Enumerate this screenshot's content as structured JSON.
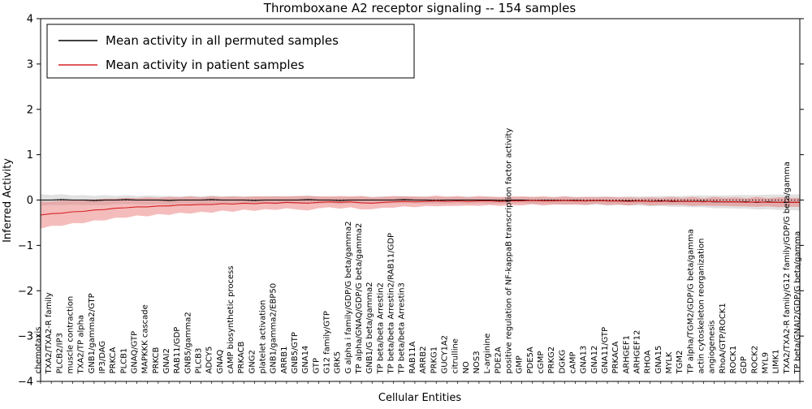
{
  "chart_data": {
    "type": "line",
    "title": "Thromboxane A2 receptor signaling -- 154 samples",
    "xlabel": "Cellular Entities",
    "ylabel": "Inferred Activity",
    "ylim": [
      -4,
      4
    ],
    "yticks": [
      -4,
      -3,
      -2,
      -1,
      0,
      1,
      2,
      3,
      4
    ],
    "grid": false,
    "legend_position": "upper-left",
    "zero_line": {
      "style": "dotted",
      "color": "#000000",
      "y": 0
    },
    "categories": [
      "chemotaxis",
      "TXA2/TXA2-R family",
      "PLCB2/IP3",
      "muscle contraction",
      "TXA2/TP alpha",
      "GNB1/gamma2/GTP",
      "IP3/DAG",
      "PRKCA",
      "PLCB1",
      "GNAQ/GTP",
      "MAPKKK cascade",
      "PRKCB",
      "GNAI2",
      "RAB11/GDP",
      "GNB5/gamma2",
      "PLCB3",
      "ADCY5",
      "GNAQ",
      "cAMP biosynthetic process",
      "PRKACB",
      "GNG2",
      "platelet activation",
      "GNB1/gamma2/EBP50",
      "ARRB1",
      "GNB5/GTP",
      "GNA14",
      "GTP",
      "G12 family/GTP",
      "GRK5",
      "G alpha i family/GDP/G beta/gamma2",
      "TP alpha/GNAQ/GDP/G beta/gamma2",
      "GNB1/G beta/gamma2",
      "TP beta/beta Arrestin2",
      "TP beta/beta Arrestin2/RAB11/GDP",
      "TP beta/beta Arrestin3",
      "RAB11A",
      "ARRB2",
      "PRKG1",
      "GUCY1A2",
      "citrulline",
      "NO",
      "NOS3",
      "L-arginine",
      "PDE2A",
      "positive regulation of NF-kappaB transcription factor activity",
      "GMP",
      "PDE5A",
      "cGMP",
      "PRKG2",
      "DGKG",
      "cAMP",
      "GNA13",
      "GNA12",
      "GNA11/GTP",
      "PRKACA",
      "ARHGEF1",
      "ARHGEF12",
      "RHOA",
      "GNA15",
      "MYLK",
      "TGM2",
      "TP alpha/TGM2/GDP/G beta/gamma",
      "actin cytoskeleton reorganization",
      "angiogenesis",
      "RhoA/GTP/ROCK1",
      "ROCK1",
      "GDP",
      "ROCK2",
      "MYL9",
      "LIMK1",
      "TXA2/TXA2-R family/G12 family/GDP/G beta/gamma",
      "TP beta/GNAI2/GDP/G beta/gamma"
    ],
    "series": [
      {
        "name": "Mean activity in all permuted samples",
        "color": "#000000",
        "band_color": "#bdbdbd",
        "band_opacity": 0.45,
        "values": [
          0.0,
          0.0,
          0.01,
          0.0,
          0.0,
          -0.01,
          0.0,
          0.0,
          0.01,
          0.0,
          0.0,
          0.0,
          -0.01,
          0.0,
          0.0,
          0.0,
          0.01,
          0.0,
          0.0,
          0.0,
          -0.01,
          0.0,
          0.0,
          0.0,
          0.0,
          0.01,
          0.0,
          0.0,
          -0.01,
          0.0,
          0.0,
          0.0,
          0.0,
          0.0,
          0.01,
          0.0,
          0.0,
          -0.01,
          0.0,
          0.0,
          0.0,
          0.0,
          0.0,
          -0.01,
          0.0,
          0.0,
          -0.01,
          -0.01,
          -0.01,
          -0.01,
          -0.01,
          -0.02,
          -0.01,
          -0.02,
          -0.02,
          -0.02,
          -0.02,
          -0.03,
          -0.02,
          -0.03,
          -0.03,
          -0.03,
          -0.03,
          -0.04,
          -0.04,
          -0.04,
          -0.04,
          -0.05,
          -0.04,
          -0.05,
          -0.05,
          -0.05
        ],
        "band_halfwidth": [
          0.13,
          0.11,
          0.12,
          0.1,
          0.11,
          0.1,
          0.11,
          0.09,
          0.1,
          0.09,
          0.1,
          0.09,
          0.1,
          0.08,
          0.09,
          0.08,
          0.09,
          0.08,
          0.09,
          0.08,
          0.09,
          0.08,
          0.09,
          0.08,
          0.08,
          0.09,
          0.08,
          0.07,
          0.08,
          0.07,
          0.08,
          0.07,
          0.08,
          0.07,
          0.08,
          0.07,
          0.08,
          0.07,
          0.08,
          0.07,
          0.08,
          0.07,
          0.08,
          0.07,
          0.08,
          0.07,
          0.08,
          0.08,
          0.08,
          0.09,
          0.08,
          0.09,
          0.09,
          0.1,
          0.09,
          0.1,
          0.1,
          0.11,
          0.11,
          0.12,
          0.12,
          0.13,
          0.13,
          0.14,
          0.14,
          0.15,
          0.15,
          0.16,
          0.16,
          0.17,
          0.17,
          0.18
        ]
      },
      {
        "name": "Mean activity in patient samples",
        "color": "#d62222",
        "band_color": "#e86a6a",
        "band_opacity": 0.45,
        "values": [
          -0.33,
          -0.3,
          -0.29,
          -0.26,
          -0.25,
          -0.22,
          -0.21,
          -0.18,
          -0.17,
          -0.15,
          -0.15,
          -0.13,
          -0.13,
          -0.11,
          -0.11,
          -0.1,
          -0.1,
          -0.08,
          -0.09,
          -0.07,
          -0.08,
          -0.06,
          -0.07,
          -0.05,
          -0.06,
          -0.07,
          -0.05,
          -0.04,
          -0.05,
          -0.04,
          -0.06,
          -0.07,
          -0.05,
          -0.04,
          -0.03,
          -0.04,
          -0.03,
          -0.02,
          -0.03,
          -0.02,
          -0.03,
          -0.02,
          -0.02,
          -0.03,
          -0.02,
          -0.02,
          -0.01,
          -0.02,
          -0.02,
          -0.01,
          -0.02,
          -0.02,
          -0.01,
          -0.02,
          -0.02,
          -0.03,
          -0.02,
          -0.03,
          -0.03,
          -0.02,
          -0.03,
          -0.03,
          -0.04,
          -0.03,
          -0.04,
          -0.04,
          -0.05,
          -0.04,
          -0.05,
          -0.05,
          -0.05,
          -0.05
        ],
        "band_halfwidth": [
          0.3,
          0.27,
          0.28,
          0.25,
          0.26,
          0.23,
          0.24,
          0.21,
          0.22,
          0.19,
          0.21,
          0.18,
          0.2,
          0.17,
          0.19,
          0.16,
          0.18,
          0.15,
          0.17,
          0.14,
          0.16,
          0.14,
          0.15,
          0.13,
          0.15,
          0.16,
          0.13,
          0.12,
          0.14,
          0.12,
          0.15,
          0.13,
          0.12,
          0.13,
          0.11,
          0.12,
          0.1,
          0.12,
          0.1,
          0.11,
          0.09,
          0.11,
          0.09,
          0.1,
          0.09,
          0.1,
          0.08,
          0.1,
          0.08,
          0.09,
          0.08,
          0.09,
          0.07,
          0.09,
          0.08,
          0.09,
          0.07,
          0.09,
          0.08,
          0.09,
          0.08,
          0.1,
          0.08,
          0.1,
          0.09,
          0.1,
          0.09,
          0.11,
          0.09,
          0.11,
          0.1,
          0.1
        ]
      }
    ]
  }
}
